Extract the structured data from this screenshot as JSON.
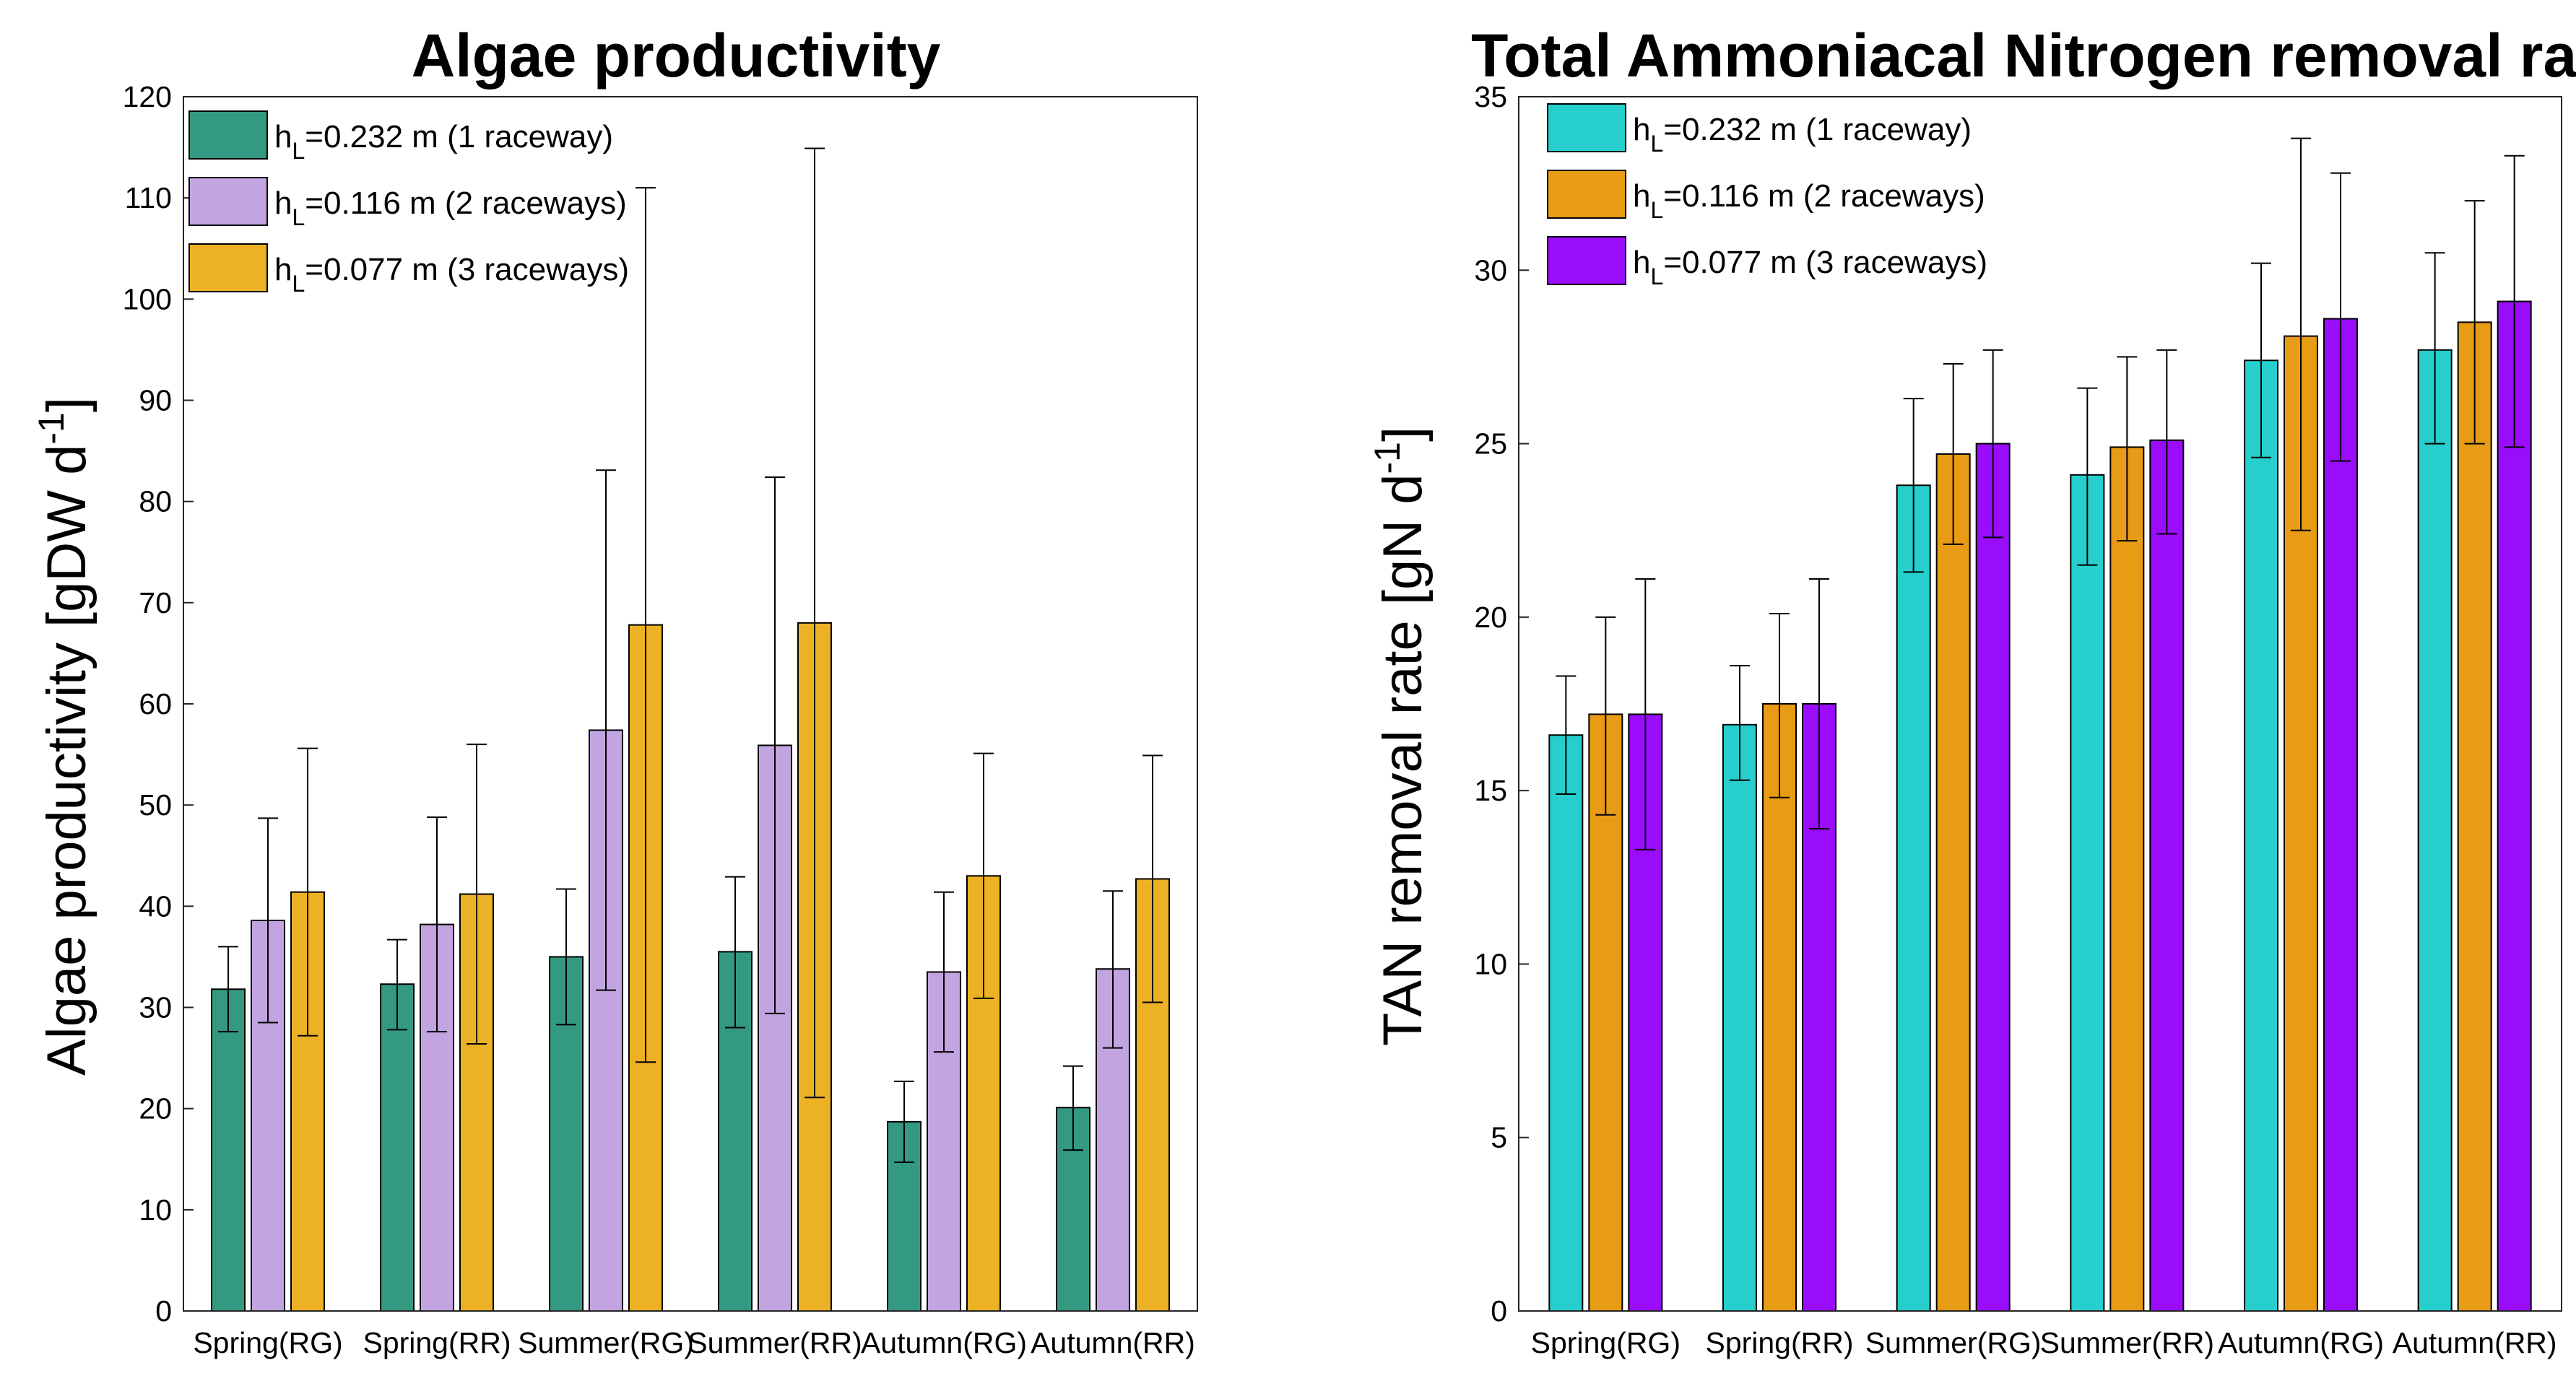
{
  "chart_data": [
    {
      "type": "bar",
      "title": "Algae productivity",
      "xlabel": "",
      "ylabel_main": "Algae productivity [gDW d",
      "ylabel_sup": "-1",
      "ylabel_end": "]",
      "ylim": [
        0,
        120
      ],
      "yticks": [
        "0",
        "10",
        "20",
        "30",
        "40",
        "50",
        "60",
        "70",
        "80",
        "90",
        "100",
        "110",
        "120"
      ],
      "categories": [
        "Spring(RG)",
        "Spring(RR)",
        "Summer(RG)",
        "Summer(RR)",
        "Autumn(RG)",
        "Autumn(RR)"
      ],
      "series": [
        {
          "name": "hL=0.232 m (1 raceway)",
          "legend_main": "h",
          "legend_sub": "L",
          "legend_rest": "=0.232 m (1 raceway)",
          "color": "#339980",
          "values": [
            31.8,
            32.3,
            35.0,
            35.5,
            18.7,
            20.1
          ],
          "err_low": [
            27.6,
            27.8,
            28.3,
            28.0,
            14.7,
            15.9
          ],
          "err_high": [
            36.0,
            36.7,
            41.7,
            42.9,
            22.7,
            24.2
          ]
        },
        {
          "name": "hL=0.116 m (2 raceways)",
          "legend_main": "h",
          "legend_sub": "L",
          "legend_rest": "=0.116 m (2 raceways)",
          "color": "#c2a5e0",
          "values": [
            38.6,
            38.2,
            57.4,
            55.9,
            33.5,
            33.8
          ],
          "err_low": [
            28.5,
            27.6,
            31.7,
            29.4,
            25.6,
            26.0
          ],
          "err_high": [
            48.7,
            48.8,
            83.1,
            82.4,
            41.4,
            41.5
          ]
        },
        {
          "name": "hL=0.077 m (3 raceways)",
          "legend_main": "h",
          "legend_sub": "L",
          "legend_rest": "=0.077 m (3 raceways)",
          "color": "#ecb124",
          "values": [
            41.4,
            41.2,
            67.8,
            68.0,
            43.0,
            42.7
          ],
          "err_low": [
            27.2,
            26.4,
            24.6,
            21.1,
            30.9,
            30.5
          ],
          "err_high": [
            55.6,
            56.0,
            111.0,
            114.9,
            55.1,
            54.9
          ]
        }
      ],
      "legend_position": "top-left"
    },
    {
      "type": "bar",
      "title": "Total Ammoniacal Nitrogen removal rate",
      "xlabel": "",
      "ylabel_main": "TAN removal rate [gN d",
      "ylabel_sup": "-1",
      "ylabel_end": "]",
      "ylim": [
        0,
        35
      ],
      "yticks": [
        "0",
        "5",
        "10",
        "15",
        "20",
        "25",
        "30",
        "35"
      ],
      "categories": [
        "Spring(RG)",
        "Spring(RR)",
        "Summer(RG)",
        "Summer(RR)",
        "Autumn(RG)",
        "Autumn(RR)"
      ],
      "series": [
        {
          "name": "hL=0.232 m (1 raceway)",
          "legend_main": "h",
          "legend_sub": "L",
          "legend_rest": "=0.232 m (1 raceway)",
          "color": "#26cfcd",
          "values": [
            16.6,
            16.9,
            23.8,
            24.1,
            27.4,
            27.7
          ],
          "err_low": [
            14.9,
            15.3,
            21.3,
            21.5,
            24.6,
            25.0
          ],
          "err_high": [
            18.3,
            18.6,
            26.3,
            26.6,
            30.2,
            30.5
          ]
        },
        {
          "name": "hL=0.116 m (2 raceways)",
          "legend_main": "h",
          "legend_sub": "L",
          "legend_rest": "=0.116 m (2 raceways)",
          "color": "#e89b14",
          "values": [
            17.2,
            17.5,
            24.7,
            24.9,
            28.1,
            28.5
          ],
          "err_low": [
            14.3,
            14.8,
            22.1,
            22.2,
            22.5,
            25.0
          ],
          "err_high": [
            20.0,
            20.1,
            27.3,
            27.5,
            33.8,
            32.0
          ]
        },
        {
          "name": "hL=0.077 m (3 raceways)",
          "legend_main": "h",
          "legend_sub": "L",
          "legend_rest": "=0.077 m (3 raceways)",
          "color": "#9a0cfc",
          "values": [
            17.2,
            17.5,
            25.0,
            25.1,
            28.6,
            29.1
          ],
          "err_low": [
            13.3,
            13.9,
            22.3,
            22.4,
            24.5,
            24.9
          ],
          "err_high": [
            21.1,
            21.1,
            27.7,
            27.7,
            32.8,
            33.3
          ]
        }
      ],
      "legend_position": "top-left"
    }
  ]
}
